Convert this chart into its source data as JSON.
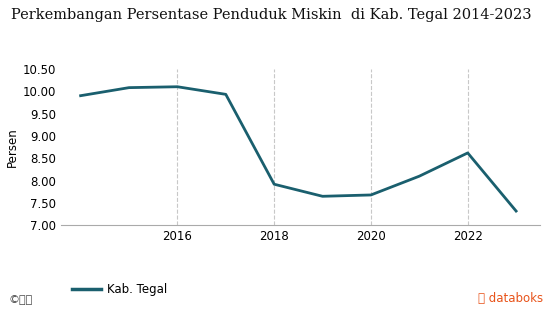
{
  "title": "Perkembangan Persentase Penduduk Miskin  di Kab. Tegal 2014-2023",
  "ylabel": "Persen",
  "years": [
    2014,
    2015,
    2016,
    2017,
    2018,
    2019,
    2020,
    2021,
    2022,
    2023
  ],
  "values": [
    9.9,
    10.08,
    10.1,
    9.93,
    7.92,
    7.65,
    7.68,
    8.1,
    8.62,
    7.32
  ],
  "line_color": "#1a5f6e",
  "line_width": 2.0,
  "ylim": [
    7.0,
    10.5
  ],
  "yticks": [
    7.0,
    7.5,
    8.0,
    8.5,
    9.0,
    9.5,
    10.0,
    10.5
  ],
  "xlim_left": 2013.6,
  "xlim_right": 2023.5,
  "xtick_positions": [
    2016,
    2018,
    2020,
    2022
  ],
  "background_color": "#ffffff",
  "grid_color": "#c8c8c8",
  "title_fontsize": 10.5,
  "axis_tick_fontsize": 8.5,
  "legend_label": "Kab. Tegal",
  "databoks_color": "#e8531a",
  "title_color": "#111111"
}
